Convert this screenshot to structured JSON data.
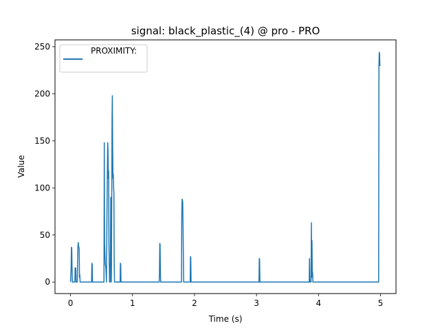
{
  "chart_data": {
    "type": "line",
    "title": "signal: black_plastic_(4) @ pro - PRO",
    "xlabel": "Time (s)",
    "ylabel": "Value",
    "xlim": [
      -0.25,
      5.25
    ],
    "ylim": [
      -12.25,
      257.25
    ],
    "xticks": [
      0,
      1,
      2,
      3,
      4,
      5
    ],
    "xtick_labels": [
      "0",
      "1",
      "2",
      "3",
      "4",
      "5"
    ],
    "yticks": [
      0,
      50,
      100,
      150,
      200,
      250
    ],
    "ytick_labels": [
      "0",
      "50",
      "100",
      "150",
      "200",
      "250"
    ],
    "grid": false,
    "legend_position": "top-left",
    "colors": {
      "series": "#1f77b4",
      "axis": "#000000",
      "background": "#ffffff"
    },
    "series": [
      {
        "name": "PROXIMITY:",
        "x": [
          0,
          0.01,
          0.015,
          0.02,
          0.025,
          0.03,
          0.07,
          0.075,
          0.08,
          0.085,
          0.09,
          0.11,
          0.115,
          0.12,
          0.125,
          0.13,
          0.14,
          0.145,
          0.15,
          0.155,
          0.16,
          0.34,
          0.345,
          0.35,
          0.355,
          0.36,
          0.54,
          0.545,
          0.55,
          0.555,
          0.56,
          0.57,
          0.58,
          0.59,
          0.6,
          0.605,
          0.61,
          0.615,
          0.62,
          0.63,
          0.64,
          0.65,
          0.66,
          0.67,
          0.675,
          0.68,
          0.685,
          0.69,
          0.695,
          0.7,
          0.705,
          0.71,
          0.715,
          0.72,
          0.725,
          0.73,
          0.735,
          0.74,
          0.745,
          0.75,
          0.8,
          0.805,
          0.81,
          0.815,
          0.82,
          1.43,
          1.435,
          1.44,
          1.445,
          1.45,
          1.455,
          1.46,
          1.79,
          1.795,
          1.8,
          1.805,
          1.81,
          1.815,
          1.82,
          1.825,
          1.83,
          1.835,
          1.84,
          1.93,
          1.935,
          1.94,
          1.945,
          1.95,
          3.04,
          3.045,
          3.05,
          3.055,
          3.06,
          3.065,
          3.07,
          3.85,
          3.855,
          3.86,
          3.865,
          3.87,
          3.88,
          3.885,
          3.89,
          3.895,
          3.9,
          3.905,
          3.91,
          3.915,
          3.92,
          3.925,
          4.97,
          4.975,
          4.98,
          4.985,
          4.99,
          4.995,
          5.0
        ],
        "values": [
          0,
          15,
          37,
          36,
          15,
          0,
          0,
          15,
          14,
          15,
          0,
          0,
          22,
          38,
          42,
          38,
          36,
          5,
          8,
          0,
          0,
          0,
          20,
          19,
          0,
          0,
          0,
          148,
          40,
          30,
          20,
          15,
          0,
          90,
          148,
          140,
          110,
          118,
          40,
          0,
          0,
          90,
          0,
          170,
          198,
          140,
          110,
          115,
          100,
          95,
          20,
          0,
          0,
          0,
          0,
          0,
          0,
          0,
          0,
          0,
          0,
          20,
          19,
          0,
          0,
          0,
          10,
          41,
          40,
          10,
          0,
          0,
          0,
          73,
          88,
          87,
          85,
          60,
          30,
          0,
          0,
          0,
          0,
          0,
          27,
          26,
          0,
          0,
          0,
          25,
          24,
          0,
          0,
          0,
          0,
          0,
          25,
          0,
          0,
          0,
          0,
          63,
          5,
          44,
          8,
          10,
          0,
          0,
          0,
          0,
          0,
          230,
          244,
          243,
          230,
          230,
          230
        ]
      }
    ]
  }
}
